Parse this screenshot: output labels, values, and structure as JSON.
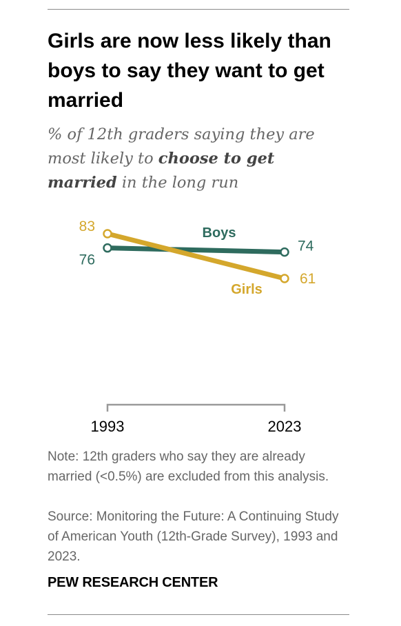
{
  "title": "Girls are now less likely than boys to say they want to get married",
  "subtitle": {
    "part1": "% of 12th graders saying they are most likely to ",
    "bold": "choose to get married",
    "part2": " in the long run"
  },
  "colors": {
    "boys": "#2e6b5e",
    "girls": "#d4a72c",
    "axis": "#999999"
  },
  "chart_data": {
    "type": "line",
    "x": [
      "1993",
      "2023"
    ],
    "series": [
      {
        "name": "Boys",
        "values": [
          76,
          74
        ],
        "color": "#2e6b5e"
      },
      {
        "name": "Girls",
        "values": [
          83,
          61
        ],
        "color": "#d4a72c"
      }
    ],
    "data_labels": {
      "Boys": [
        "76",
        "74"
      ],
      "Girls": [
        "83",
        "61"
      ]
    },
    "xlabel": "",
    "ylabel": "",
    "grid": false
  },
  "note": "Note: 12th graders who say they are already married (<0.5%) are excluded from this analysis.",
  "source": "Source: Monitoring the Future: A Continuing Study of American Youth (12th-Grade Survey), 1993 and 2023.",
  "brand": "PEW RESEARCH CENTER"
}
